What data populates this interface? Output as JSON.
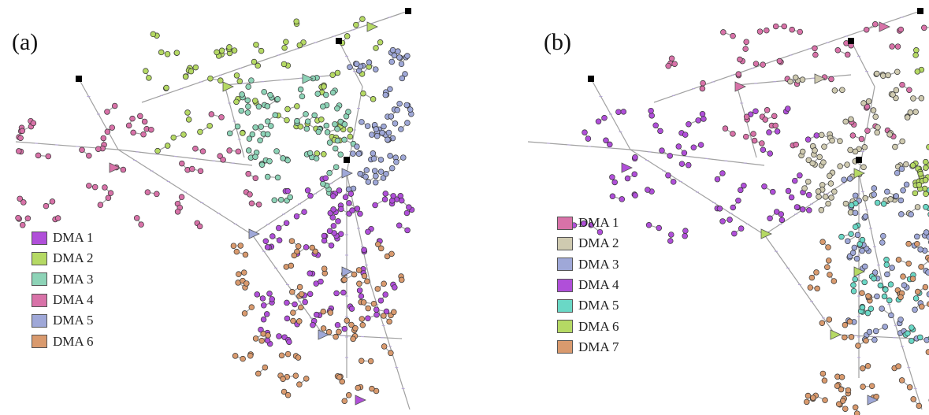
{
  "figure": {
    "panels": [
      {
        "id": "a",
        "label": "(a)",
        "legend": [
          {
            "label": "DMA 1",
            "color": "#b04fd9"
          },
          {
            "label": "DMA 2",
            "color": "#b5d964"
          },
          {
            "label": "DMA 3",
            "color": "#8dd3b7"
          },
          {
            "label": "DMA 4",
            "color": "#d872a8"
          },
          {
            "label": "DMA 5",
            "color": "#9fa8d8"
          },
          {
            "label": "DMA 6",
            "color": "#d99a6e"
          }
        ]
      },
      {
        "id": "b",
        "label": "(b)",
        "legend": [
          {
            "label": "DMA 1",
            "color": "#d872a8"
          },
          {
            "label": "DMA 2",
            "color": "#cfcab0"
          },
          {
            "label": "DMA 3",
            "color": "#9fa8d8"
          },
          {
            "label": "DMA 4",
            "color": "#b04fd9"
          },
          {
            "label": "DMA 5",
            "color": "#6ad8c6"
          },
          {
            "label": "DMA 6",
            "color": "#b5d964"
          },
          {
            "label": "DMA 7",
            "color": "#d99a6e"
          }
        ]
      }
    ],
    "region_colors_a": {
      "west": "#d872a8",
      "north": "#b5d964",
      "center": "#8dd3b7",
      "east": "#9fa8d8",
      "south": "#b04fd9",
      "southwest": "#d99a6e"
    },
    "region_colors_b": {
      "west": "#b04fd9",
      "north": "#d872a8",
      "center": "#cfcab0",
      "east": "#b5d964",
      "south": "#9fa8d8",
      "southeast": "#6ad8c6",
      "southwest": "#d99a6e"
    },
    "edge_color": "#a0a0a0",
    "reservoir_color": "#000000"
  }
}
